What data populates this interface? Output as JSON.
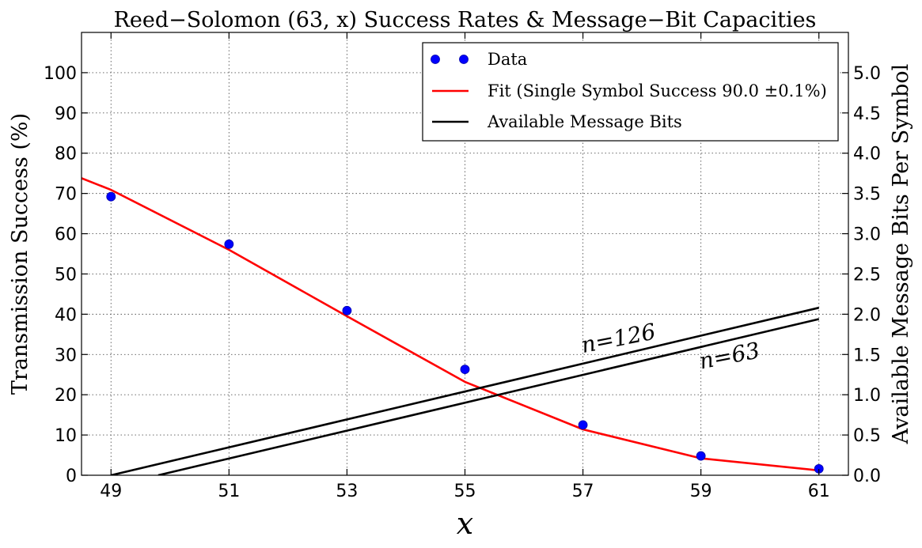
{
  "chart_data": {
    "type": "line",
    "title": "Reed−Solomon (63, x) Success Rates & Message−Bit Capacities",
    "xlabel": "x",
    "ylabel": "Transmission Success (%)",
    "y2label": "Available Message Bits Per Symbol",
    "xlim": [
      48.5,
      61.5
    ],
    "ylim": [
      0,
      110
    ],
    "y2lim": [
      0,
      5.5
    ],
    "xticks": [
      "49",
      "51",
      "53",
      "55",
      "57",
      "59",
      "61"
    ],
    "yticks": [
      "0",
      "10",
      "20",
      "30",
      "40",
      "50",
      "60",
      "70",
      "80",
      "90",
      "100"
    ],
    "y2ticks": [
      "0.0",
      "0.5",
      "1.0",
      "1.5",
      "2.0",
      "2.5",
      "3.0",
      "3.5",
      "4.0",
      "4.5",
      "5.0"
    ],
    "grid": true,
    "legend": {
      "position": "top-right",
      "entries": [
        "Data",
        "Fit (Single Symbol Success 90.0 ±0.1%)",
        "Available Message Bits"
      ]
    },
    "series": [
      {
        "name": "Data",
        "kind": "markers",
        "color": "#0000ff",
        "axis": "left",
        "x": [
          49,
          51,
          53,
          55,
          57,
          59,
          61
        ],
        "y": [
          69.2,
          57.4,
          40.9,
          26.3,
          12.5,
          4.8,
          1.6
        ]
      },
      {
        "name": "Fit (Single Symbol Success 90.0 ±0.1%)",
        "kind": "line",
        "color": "#ff0000",
        "axis": "left",
        "x": [
          48.5,
          49,
          51,
          53,
          55,
          57,
          59,
          61
        ],
        "y": [
          73.8,
          70.9,
          56.0,
          39.5,
          23.2,
          11.4,
          4.2,
          1.2
        ]
      },
      {
        "name": "Available Message Bits",
        "kind": "line",
        "color": "#000000",
        "axis": "right",
        "label": "n=126",
        "x": [
          49,
          61
        ],
        "y": [
          0.0,
          2.08
        ]
      },
      {
        "name": "Available Message Bits",
        "kind": "line",
        "color": "#000000",
        "axis": "right",
        "label": "n=63",
        "x": [
          49.8,
          61
        ],
        "y": [
          0.0,
          1.94
        ]
      }
    ],
    "annotations": [
      {
        "text": "n=126",
        "x": 57.0,
        "y2": 1.52
      },
      {
        "text": "n=63",
        "x": 59.0,
        "y2": 1.32
      }
    ]
  }
}
